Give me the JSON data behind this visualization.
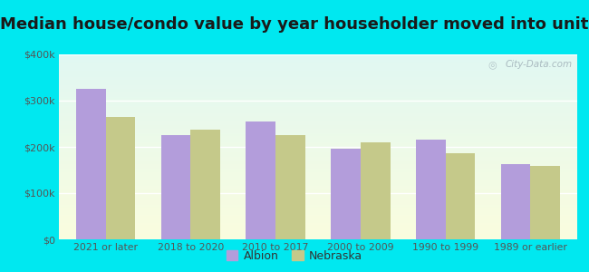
{
  "title": "Median house/condo value by year householder moved into unit",
  "categories": [
    "2021 or later",
    "2018 to 2020",
    "2010 to 2017",
    "2000 to 2009",
    "1990 to 1999",
    "1989 or earlier"
  ],
  "albion_values": [
    325000,
    225000,
    255000,
    197000,
    215000,
    162000
  ],
  "nebraska_values": [
    265000,
    237000,
    225000,
    210000,
    187000,
    158000
  ],
  "albion_color": "#b39ddb",
  "nebraska_color": "#c5c98a",
  "bar_width": 0.35,
  "ylim": [
    0,
    400000
  ],
  "yticks": [
    0,
    100000,
    200000,
    300000,
    400000
  ],
  "ytick_labels": [
    "$0",
    "$100k",
    "$200k",
    "$300k",
    "$400k"
  ],
  "background_outer": "#00e8f0",
  "grid_color": "#ffffff",
  "watermark": "City-Data.com",
  "legend_labels": [
    "Albion",
    "Nebraska"
  ],
  "title_fontsize": 13,
  "title_color": "#1a1a1a"
}
